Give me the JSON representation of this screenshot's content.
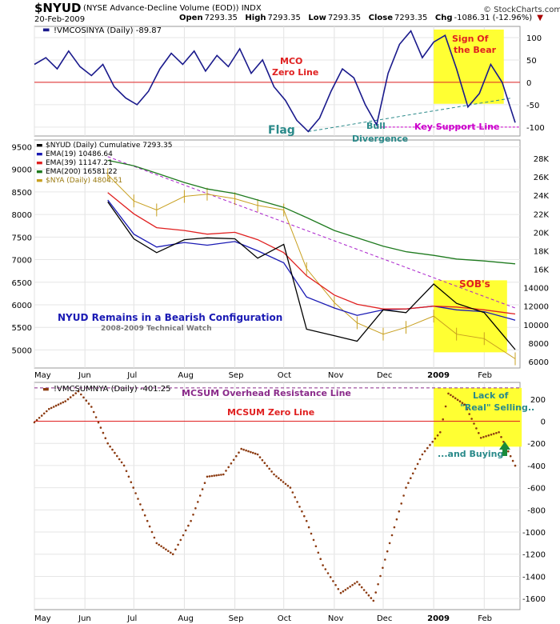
{
  "header": {
    "symbol": "$NYUD",
    "description": "(NYSE Advance-Decline Volume (EOD))",
    "exchange": "INDX",
    "date": "20-Feb-2009",
    "open_label": "Open",
    "open": "7293.35",
    "high_label": "High",
    "high": "7293.35",
    "low_label": "Low",
    "low": "7293.35",
    "close_label": "Close",
    "close": "7293.35",
    "chg_label": "Chg",
    "chg": "-1086.31 (-12.96%)",
    "logo": "© StockCharts.com"
  },
  "chart_data": [
    {
      "type": "line",
      "legend": [
        "!VMCOSINYA (Daily) -89.87"
      ],
      "x_range": [
        "2008-05-01",
        "2009-02-20"
      ],
      "ylim": [
        -120,
        125
      ],
      "yticks": [
        100,
        50,
        0,
        -50,
        -100
      ],
      "series": [
        {
          "name": "!VMCOSINYA (Daily)",
          "color": "#1a1a8c",
          "x": [
            "2008-05-01",
            "2008-05-08",
            "2008-05-15",
            "2008-05-22",
            "2008-05-29",
            "2008-06-05",
            "2008-06-12",
            "2008-06-19",
            "2008-06-26",
            "2008-07-03",
            "2008-07-10",
            "2008-07-17",
            "2008-07-24",
            "2008-07-31",
            "2008-08-07",
            "2008-08-14",
            "2008-08-21",
            "2008-08-28",
            "2008-09-04",
            "2008-09-11",
            "2008-09-18",
            "2008-09-25",
            "2008-10-02",
            "2008-10-09",
            "2008-10-16",
            "2008-10-23",
            "2008-10-30",
            "2008-11-06",
            "2008-11-13",
            "2008-11-20",
            "2008-11-27",
            "2008-12-04",
            "2008-12-11",
            "2008-12-18",
            "2008-12-25",
            "2009-01-01",
            "2009-01-08",
            "2009-01-15",
            "2009-01-22",
            "2009-01-29",
            "2009-02-05",
            "2009-02-12",
            "2009-02-20"
          ],
          "values": [
            40,
            55,
            30,
            70,
            35,
            15,
            40,
            -10,
            -35,
            -50,
            -20,
            30,
            65,
            40,
            70,
            25,
            60,
            35,
            75,
            20,
            50,
            -10,
            -40,
            -85,
            -110,
            -80,
            -20,
            30,
            10,
            -50,
            -95,
            20,
            85,
            115,
            55,
            90,
            105,
            30,
            -55,
            -25,
            40,
            0,
            -90
          ]
        }
      ],
      "annotations": [
        "MCO Zero Line",
        "Sign Of the Bear",
        "Flag",
        "Bull Divergence",
        "Key Support Line"
      ]
    },
    {
      "type": "line",
      "legend": [
        "$NYUD (Daily) Cumulative 7293.35",
        "EMA(19) 10486.64",
        "EMA(39) 11147.21",
        "EMA(200) 16581.22",
        "$NYA (Daily) 4804.51"
      ],
      "x_range": [
        "2008-05-01",
        "2009-02-20"
      ],
      "ylim": [
        4600,
        9650
      ],
      "yticks_left": [
        9500,
        9000,
        8500,
        8000,
        7500,
        7000,
        6500,
        6000,
        5500,
        5000
      ],
      "ylim_right": [
        5300,
        30000
      ],
      "yticks_right": [
        "28K",
        "26K",
        "24K",
        "22K",
        "20K",
        "18K",
        "16K",
        "14000",
        "12000",
        "10000",
        "8000",
        "6000"
      ],
      "x": [
        "2008-06-15",
        "2008-07-01",
        "2008-07-15",
        "2008-08-01",
        "2008-08-15",
        "2008-09-01",
        "2008-09-15",
        "2008-10-01",
        "2008-10-15",
        "2008-11-01",
        "2008-11-15",
        "2008-12-01",
        "2008-12-15",
        "2009-01-01",
        "2009-01-15",
        "2009-02-01",
        "2009-02-20"
      ],
      "series": [
        {
          "name": "$NYA (Daily)",
          "color": "#c8a020",
          "values": [
            8880,
            8300,
            8100,
            8400,
            8450,
            8350,
            8200,
            8100,
            6800,
            6050,
            5600,
            5350,
            5500,
            5750,
            5350,
            5250,
            4804.51
          ]
        },
        {
          "name": "EMA(19)",
          "color": "#1a1ab4",
          "values": [
            23500,
            19800,
            18400,
            18900,
            18600,
            19000,
            18000,
            16700,
            13000,
            11800,
            11000,
            11600,
            11700,
            12000,
            11600,
            11400,
            10486.64
          ]
        },
        {
          "name": "EMA(39)",
          "color": "#e02020",
          "values": [
            24300,
            22000,
            20500,
            20200,
            19800,
            20000,
            19200,
            17800,
            15300,
            13200,
            12200,
            11700,
            11700,
            12000,
            11900,
            11600,
            11147.21
          ]
        },
        {
          "name": "EMA(200)",
          "color": "#1e7a1e",
          "values": [
            27800,
            27200,
            26400,
            25400,
            24700,
            24200,
            23500,
            22700,
            21600,
            20200,
            19400,
            18500,
            17900,
            17500,
            17100,
            16900,
            16581.22
          ]
        },
        {
          "name": "$NYUD (Daily) Cumulative",
          "color": "#000000",
          "values": [
            23300,
            19300,
            17800,
            19200,
            19400,
            19300,
            17200,
            18700,
            9500,
            8800,
            8200,
            11600,
            11300,
            14400,
            12300,
            11300,
            7293.35
          ]
        }
      ],
      "annotations": [
        "SOB's",
        "NYUD Remains in a Bearish Configuration",
        "2008-2009 Technical Watch"
      ]
    },
    {
      "type": "scatter",
      "legend": [
        "!VMCSUMNYA (Daily) -401.25"
      ],
      "x_range": [
        "2008-05-01",
        "2009-02-20"
      ],
      "ylim": [
        -1700,
        350
      ],
      "yticks": [
        200,
        0,
        -200,
        -400,
        -600,
        -800,
        -1000,
        -1200,
        -1400,
        -1600
      ],
      "series": [
        {
          "name": "!VMCSUMNYA (Daily)",
          "color": "#8b3a10",
          "x": [
            "2008-05-01",
            "2008-05-10",
            "2008-05-20",
            "2008-05-28",
            "2008-06-05",
            "2008-06-15",
            "2008-06-25",
            "2008-07-05",
            "2008-07-15",
            "2008-07-25",
            "2008-08-05",
            "2008-08-15",
            "2008-08-25",
            "2008-09-05",
            "2008-09-15",
            "2008-09-25",
            "2008-10-05",
            "2008-10-15",
            "2008-10-25",
            "2008-11-05",
            "2008-11-15",
            "2008-11-25",
            "2008-12-05",
            "2008-12-15",
            "2008-12-25",
            "2009-01-05",
            "2009-01-10",
            "2009-01-20",
            "2009-01-30",
            "2009-02-10",
            "2009-02-20"
          ],
          "values": [
            -10,
            110,
            180,
            270,
            130,
            -200,
            -400,
            -750,
            -1100,
            -1200,
            -900,
            -500,
            -480,
            -250,
            -300,
            -480,
            -600,
            -900,
            -1300,
            -1550,
            -1450,
            -1620,
            -1100,
            -600,
            -300,
            -100,
            250,
            150,
            -150,
            -100,
            -401.25
          ]
        }
      ],
      "annotations": [
        "MCSUM Overhead Resistance Line",
        "MCSUM Zero Line",
        "Lack of \"Real\" Selling..",
        "...and Buying"
      ]
    }
  ],
  "x_axis_labels": [
    "May",
    "Jun",
    "Jul",
    "Aug",
    "Sep",
    "Oct",
    "Nov",
    "Dec",
    "2009",
    "Feb"
  ]
}
